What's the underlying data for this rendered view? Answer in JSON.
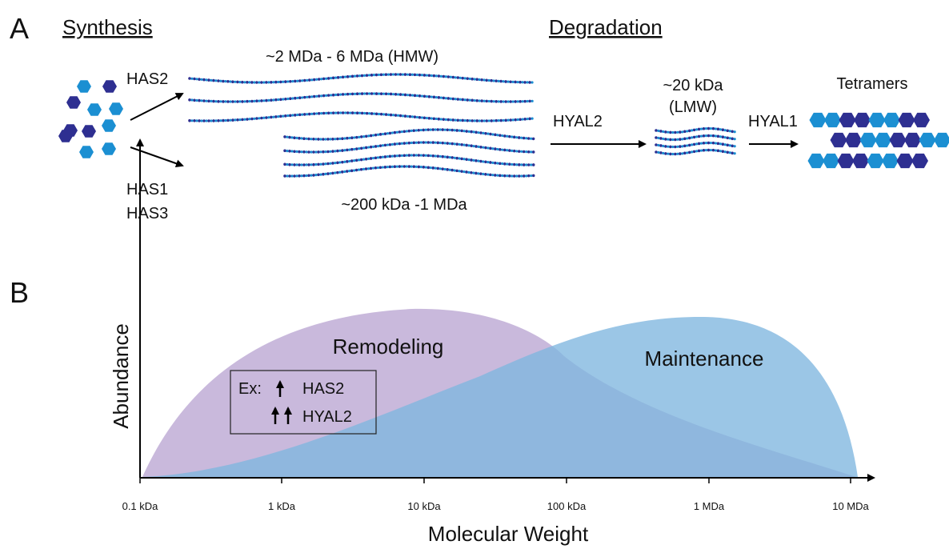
{
  "panel_a": {
    "label": "A",
    "synthesis": "Synthesis",
    "degradation": "Degradation",
    "enzymes": {
      "has2": "HAS2",
      "has1": "HAS1",
      "has3": "HAS3",
      "hyal2": "HYAL2",
      "hyal1": "HYAL1"
    },
    "sizes": {
      "hmw": "~2 MDa - 6 MDa (HMW)",
      "mid": "~200 kDa -1 MDa",
      "lmw_size": "~20 kDa",
      "lmw_tag": "(LMW)",
      "tetramers": "Tetramers"
    }
  },
  "panel_b": {
    "label": "B",
    "y_axis_label": "Abundance",
    "x_axis_label": "Molecular Weight",
    "x_ticks": [
      "0.1 kDa",
      "1 kDa",
      "10 kDa",
      "100 kDa",
      "1 MDa",
      "10 MDa"
    ],
    "regions": {
      "remodeling": "Remodeling",
      "maintenance": "Maintenance"
    },
    "example": {
      "prefix": "Ex:",
      "lines": [
        "HAS2",
        "HYAL2"
      ]
    }
  }
}
